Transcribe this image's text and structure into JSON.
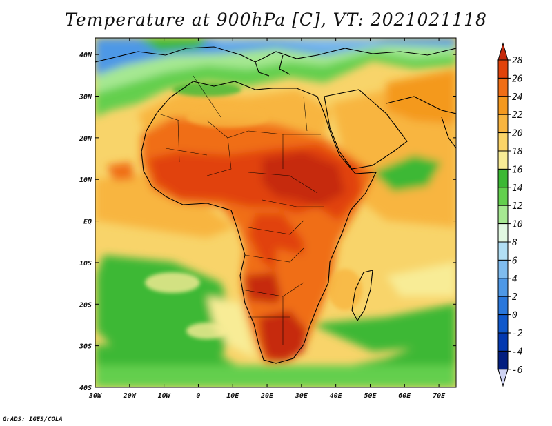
{
  "title": "Temperature at 900hPa [C], VT: 2021021118",
  "credit": "GrADS: IGES/COLA",
  "map": {
    "lat_ticks": [
      "40N",
      "30N",
      "20N",
      "10N",
      "EQ",
      "10S",
      "20S",
      "30S",
      "40S"
    ],
    "lon_ticks": [
      "30W",
      "20W",
      "10W",
      "0",
      "10E",
      "20E",
      "30E",
      "40E",
      "50E",
      "60E",
      "70E"
    ],
    "lat_range": [
      -40,
      44
    ],
    "lon_range": [
      -30,
      75
    ]
  },
  "colorbar": {
    "labels": [
      "28",
      "26",
      "24",
      "22",
      "20",
      "18",
      "16",
      "14",
      "12",
      "10",
      "8",
      "6",
      "4",
      "2",
      "0",
      "-2",
      "-4",
      "-6"
    ],
    "colors": [
      "#c62b0e",
      "#e1430b",
      "#f06e16",
      "#f4991f",
      "#f8b540",
      "#fbd468",
      "#f8ec96",
      "#3cb834",
      "#63cf4e",
      "#a6e892",
      "#e2f8e2",
      "#b2dff5",
      "#7fbcef",
      "#4e98e6",
      "#2a77db",
      "#1058cb",
      "#0439b0",
      "#021e80",
      "#cfd3f3"
    ]
  }
}
